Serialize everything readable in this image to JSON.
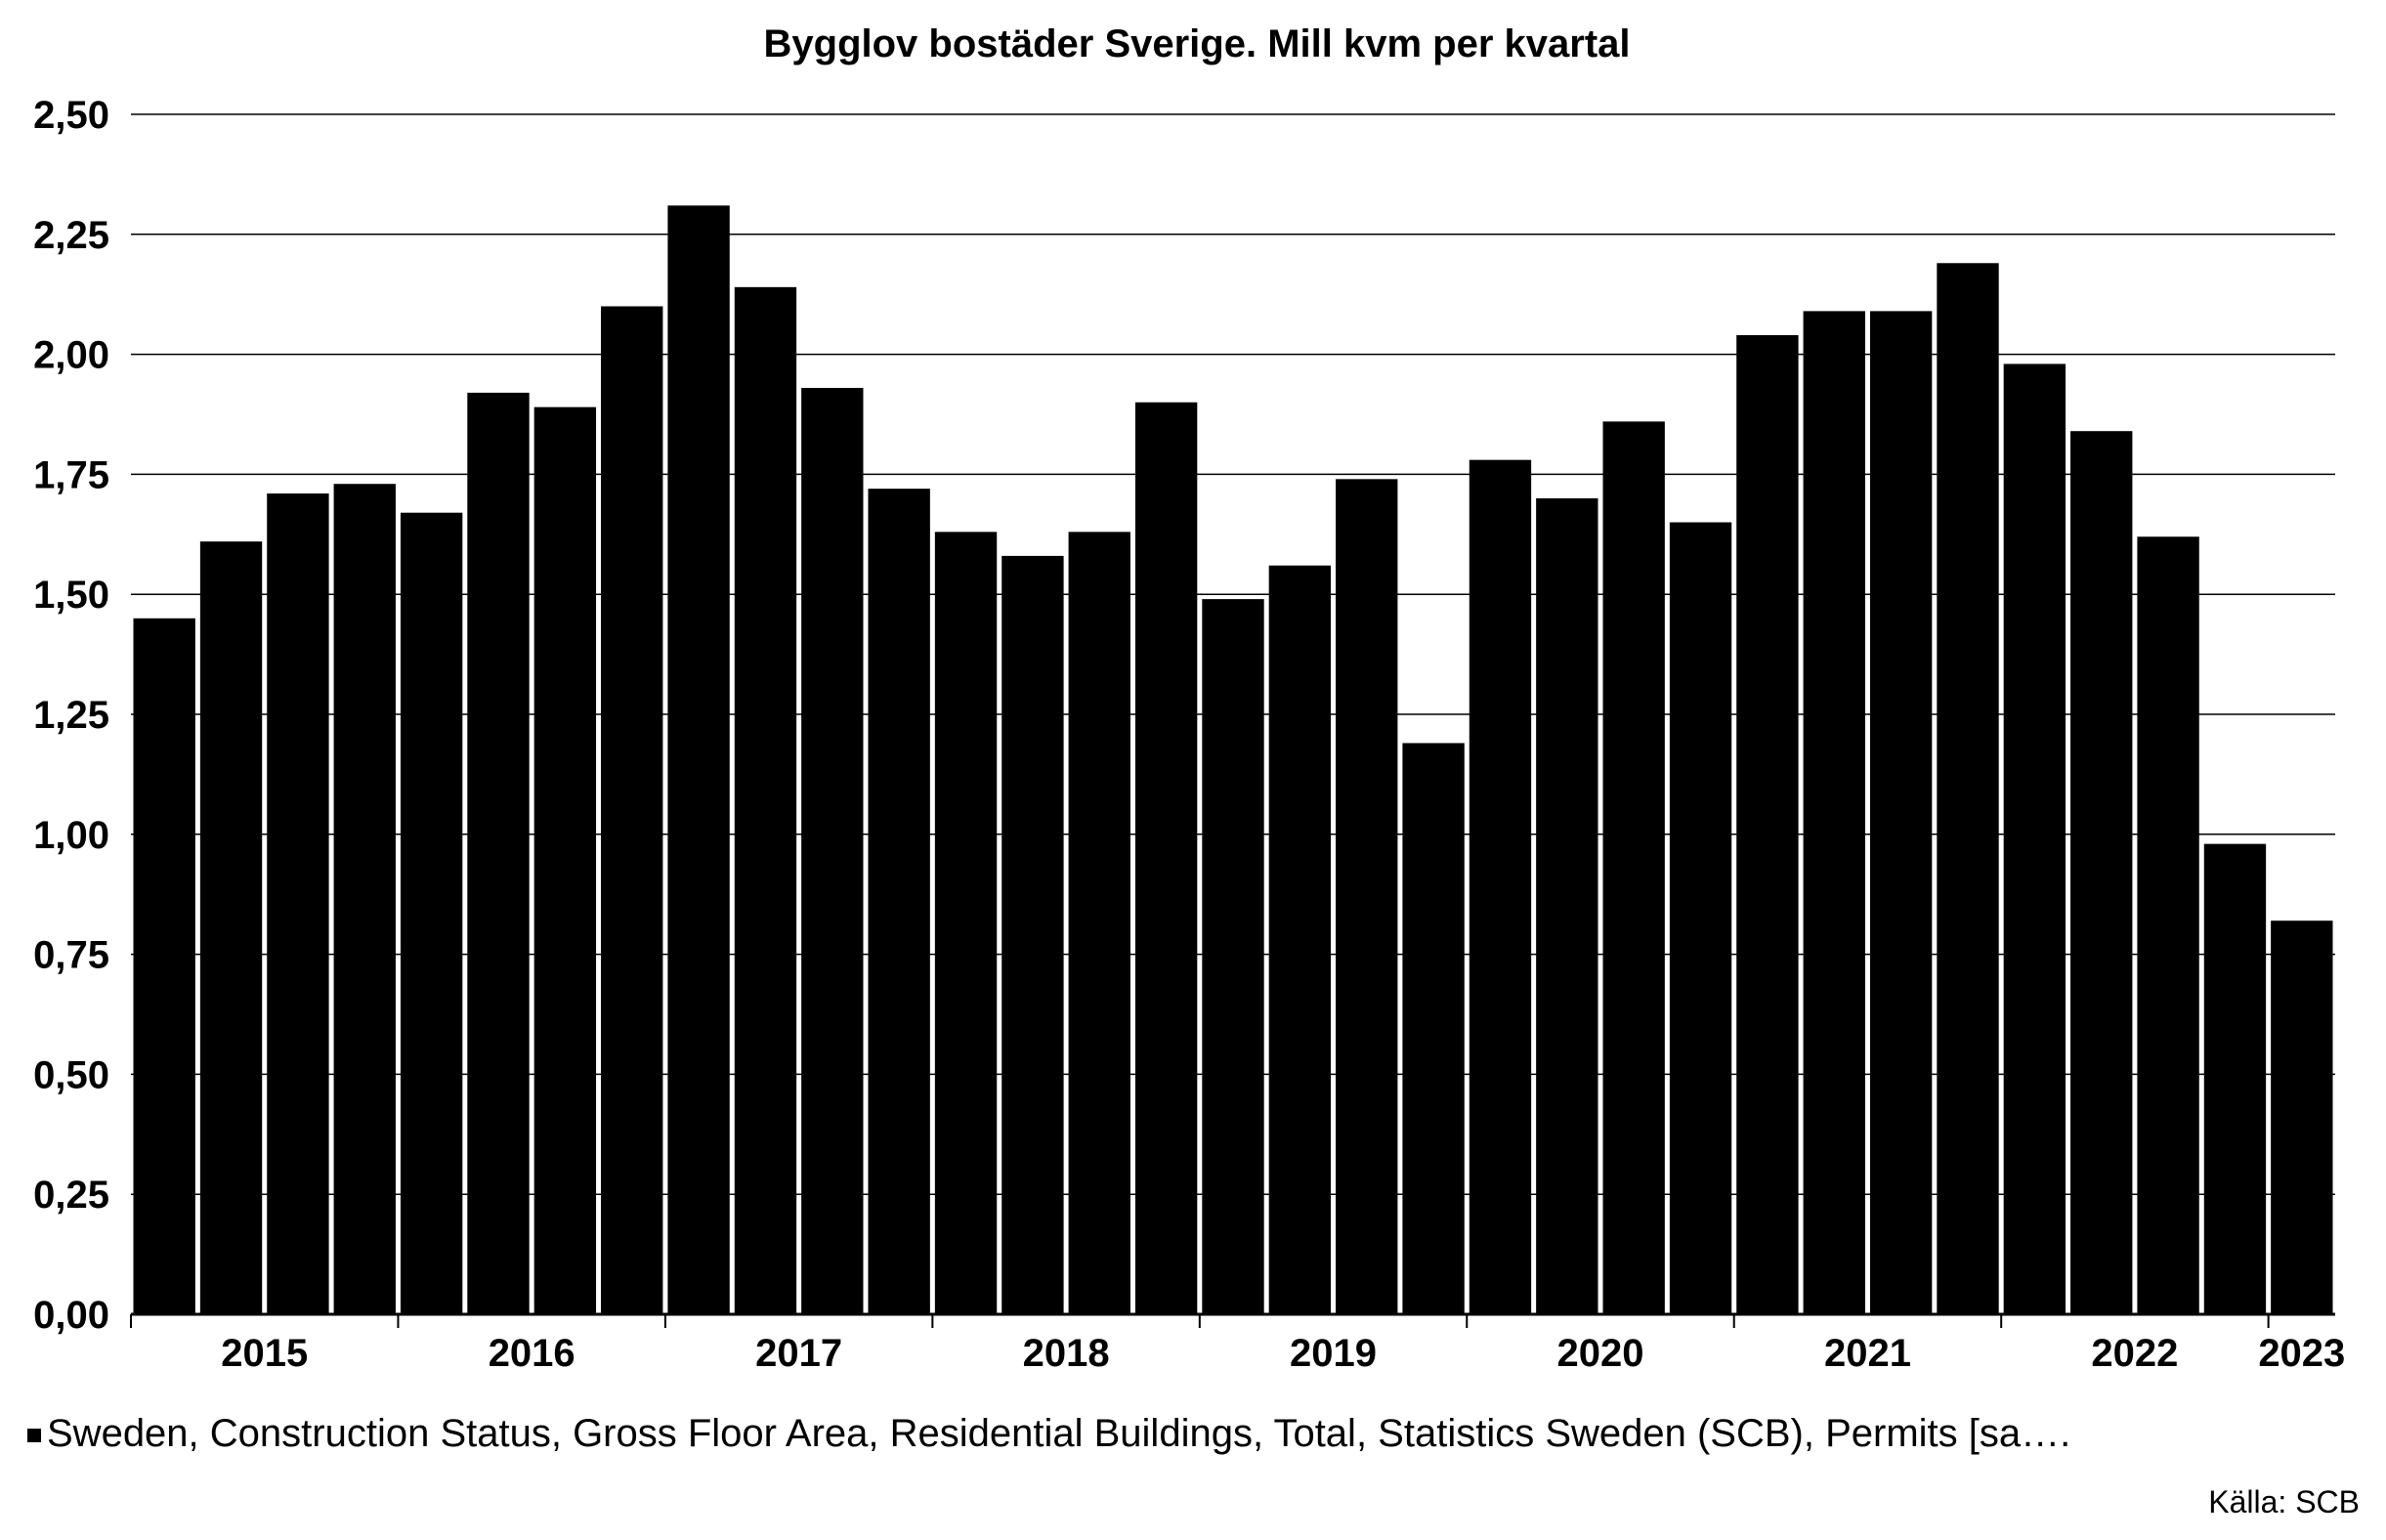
{
  "chart_data": {
    "type": "bar",
    "title": "Bygglov bostäder Sverige. Mill kvm per kvartal",
    "xlabel": "",
    "ylabel": "",
    "ylim": [
      0,
      2.5
    ],
    "yticks": [
      "0,00",
      "0,25",
      "0,50",
      "0,75",
      "1,00",
      "1,25",
      "1,50",
      "1,75",
      "2,00",
      "2,25",
      "2,50"
    ],
    "grid": true,
    "bar_color": "#000000",
    "year_labels": [
      "2015",
      "2016",
      "2017",
      "2018",
      "2019",
      "2020",
      "2021",
      "2022",
      "2023"
    ],
    "categories": [
      "2015 Q1",
      "2015 Q2",
      "2015 Q3",
      "2015 Q4",
      "2016 Q1",
      "2016 Q2",
      "2016 Q3",
      "2016 Q4",
      "2017 Q1",
      "2017 Q2",
      "2017 Q3",
      "2017 Q4",
      "2018 Q1",
      "2018 Q2",
      "2018 Q3",
      "2018 Q4",
      "2019 Q1",
      "2019 Q2",
      "2019 Q3",
      "2019 Q4",
      "2020 Q1",
      "2020 Q2",
      "2020 Q3",
      "2020 Q4",
      "2021 Q1",
      "2021 Q2",
      "2021 Q3",
      "2021 Q4",
      "2022 Q1",
      "2022 Q2",
      "2022 Q3",
      "2022 Q4",
      "2023 Q1"
    ],
    "series": [
      {
        "name": "Sweden, Construction Status, Gross Floor Area, Residential Buildings, Total, Statistics Sweden (SCB), Permits [sa….",
        "values": [
          1.45,
          1.61,
          1.71,
          1.73,
          1.67,
          1.92,
          1.89,
          2.1,
          2.31,
          2.14,
          1.93,
          1.72,
          1.63,
          1.58,
          1.63,
          1.9,
          1.49,
          1.56,
          1.74,
          1.19,
          1.78,
          1.7,
          1.86,
          1.65,
          2.04,
          2.09,
          2.09,
          2.19,
          1.98,
          1.84,
          1.62,
          0.98,
          0.82
        ]
      }
    ],
    "legend": {
      "placement": "bottom",
      "text": "Sweden, Construction Status, Gross Floor Area, Residential Buildings, Total, Statistics Sweden (SCB), Permits [sa…."
    },
    "source": "Källa: SCB"
  }
}
